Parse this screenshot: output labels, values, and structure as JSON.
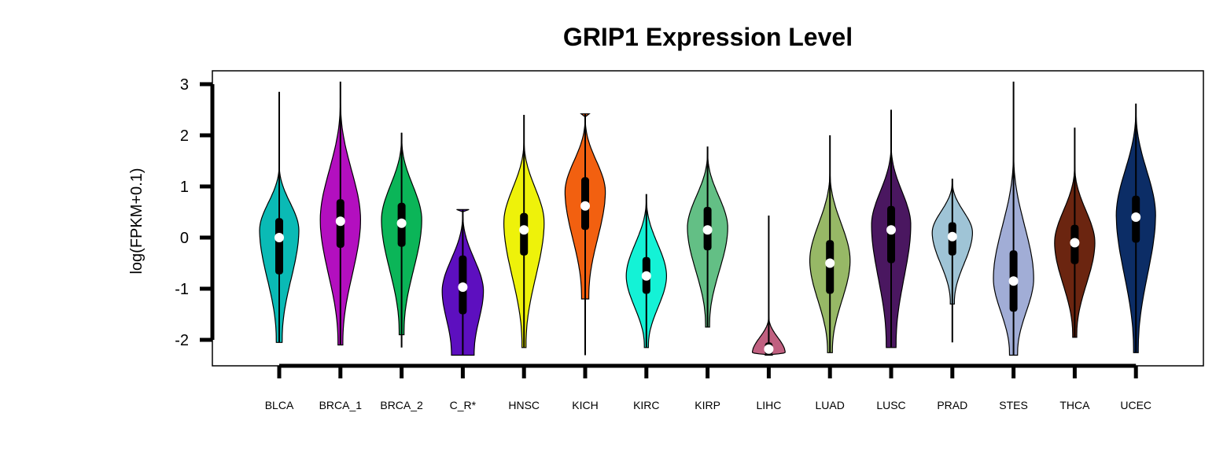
{
  "chart_data": {
    "type": "violin",
    "title": "GRIP1 Expression Level",
    "xlabel": "",
    "ylabel": "log(FPKM+0.1)",
    "ylim": [
      -2.5,
      3.3
    ],
    "yticks": [
      3,
      2,
      1,
      0,
      -1,
      -2
    ],
    "ytick_labels": [
      "3",
      "2",
      "1",
      "0",
      "-1",
      "-2"
    ],
    "grid": false,
    "categories": [
      "BLCA",
      "BRCA_1",
      "BRCA_2",
      "C_R*",
      "HNSC",
      "KICH",
      "KIRC",
      "KIRP",
      "LIHC",
      "LUAD",
      "LUSC",
      "PRAD",
      "STES",
      "THCA",
      "UCEC"
    ],
    "series": [
      {
        "category": "BLCA",
        "color": "#0abab5",
        "min": -2.05,
        "max": 2.85,
        "q1": -0.72,
        "q3": 0.38,
        "median": 0.0,
        "mode": 0.15,
        "width": 0.78,
        "vmin": -2.05,
        "vmax": 1.5,
        "wlow": 0.15
      },
      {
        "category": "BRCA_1",
        "color": "#b30fbf",
        "min": -2.1,
        "max": 3.05,
        "q1": -0.2,
        "q3": 0.75,
        "median": 0.32,
        "mode": 0.35,
        "width": 0.8,
        "vmin": -2.1,
        "vmax": 2.8,
        "wlow": 0.12
      },
      {
        "category": "BRCA_2",
        "color": "#0bb558",
        "min": -2.15,
        "max": 2.05,
        "q1": -0.18,
        "q3": 0.68,
        "median": 0.28,
        "mode": 0.35,
        "width": 0.8,
        "vmin": -1.9,
        "vmax": 2.05,
        "wlow": 0.12
      },
      {
        "category": "C_R*",
        "color": "#5d0fbf",
        "min": -2.3,
        "max": 0.55,
        "q1": -1.5,
        "q3": -0.35,
        "median": -0.97,
        "mode": -1.05,
        "width": 0.82,
        "vmin": -2.3,
        "vmax": 0.55,
        "wlow": 0.55
      },
      {
        "category": "HNSC",
        "color": "#eef20a",
        "min": -2.15,
        "max": 2.4,
        "q1": -0.35,
        "q3": 0.48,
        "median": 0.15,
        "mode": 0.3,
        "width": 0.8,
        "vmin": -2.15,
        "vmax": 2.0,
        "wlow": 0.1
      },
      {
        "category": "KICH",
        "color": "#f26010",
        "min": -2.3,
        "max": 2.42,
        "q1": 0.15,
        "q3": 1.18,
        "median": 0.62,
        "mode": 0.9,
        "width": 0.8,
        "vmin": -1.2,
        "vmax": 2.42,
        "wlow": 0.18
      },
      {
        "category": "KIRC",
        "color": "#14f2d6",
        "min": -2.15,
        "max": 0.85,
        "q1": -1.1,
        "q3": -0.38,
        "median": -0.75,
        "mode": -0.75,
        "width": 0.8,
        "vmin": -2.15,
        "vmax": 0.85,
        "wlow": 0.1
      },
      {
        "category": "KIRP",
        "color": "#63bf85",
        "min": -1.75,
        "max": 1.78,
        "q1": -0.25,
        "q3": 0.6,
        "median": 0.15,
        "mode": 0.2,
        "width": 0.8,
        "vmin": -1.75,
        "vmax": 1.75,
        "wlow": 0.1
      },
      {
        "category": "LIHC",
        "color": "#c06080",
        "min": -2.3,
        "max": 0.43,
        "q1": -2.3,
        "q3": -2.05,
        "median": -2.18,
        "mode": -2.25,
        "width": 0.65,
        "vmin": -2.3,
        "vmax": -1.5,
        "wlow": 0.2
      },
      {
        "category": "LUAD",
        "color": "#97b866",
        "min": -2.25,
        "max": 2.0,
        "q1": -1.1,
        "q3": -0.05,
        "median": -0.5,
        "mode": -0.45,
        "width": 0.8,
        "vmin": -2.25,
        "vmax": 1.4,
        "wlow": 0.12
      },
      {
        "category": "LUSC",
        "color": "#4a1760",
        "min": -2.15,
        "max": 2.5,
        "q1": -0.5,
        "q3": 0.62,
        "median": 0.15,
        "mode": 0.25,
        "width": 0.78,
        "vmin": -2.15,
        "vmax": 1.9,
        "wlow": 0.25
      },
      {
        "category": "PRAD",
        "color": "#9fc4d6",
        "min": -2.05,
        "max": 1.15,
        "q1": -0.35,
        "q3": 0.3,
        "median": 0.02,
        "mode": 0.1,
        "width": 0.8,
        "vmin": -1.3,
        "vmax": 1.15,
        "wlow": 0.1
      },
      {
        "category": "STES",
        "color": "#a1add6",
        "min": -2.3,
        "max": 3.05,
        "q1": -1.45,
        "q3": -0.25,
        "median": -0.85,
        "mode": -0.8,
        "width": 0.8,
        "vmin": -2.3,
        "vmax": 1.8,
        "wlow": 0.2
      },
      {
        "category": "THCA",
        "color": "#6b2510",
        "min": -1.95,
        "max": 2.15,
        "q1": -0.52,
        "q3": 0.25,
        "median": -0.1,
        "mode": -0.1,
        "width": 0.8,
        "vmin": -1.95,
        "vmax": 1.5,
        "wlow": 0.1
      },
      {
        "category": "UCEC",
        "color": "#0c2d66",
        "min": -2.25,
        "max": 2.62,
        "q1": -0.1,
        "q3": 0.82,
        "median": 0.4,
        "mode": 0.45,
        "width": 0.78,
        "vmin": -2.25,
        "vmax": 2.62,
        "wlow": 0.12
      }
    ]
  }
}
